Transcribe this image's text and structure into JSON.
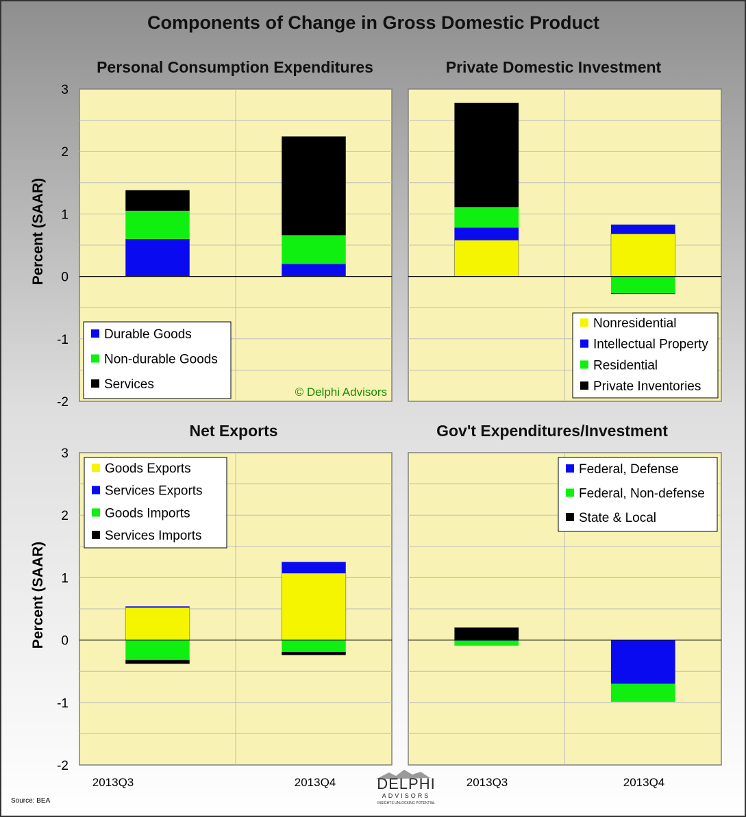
{
  "title": "Components of Change in Gross Domestic Product",
  "ylabel": "Percent (SAAR)",
  "yticks": [
    "3",
    "2",
    "1",
    "0",
    "-1",
    "-2"
  ],
  "categories": [
    "2013Q3",
    "2013Q4"
  ],
  "source": "Source: BEA",
  "watermark": "© Delphi Advisors",
  "logo": {
    "main": "DELPHI",
    "sub": "ADVISORS",
    "tagline": "INSIGHTS UNLOCKING POTENTIAL"
  },
  "colors": {
    "plot_bg": "#f8f3b4",
    "yellow": "#f5f500",
    "blue": "#0a0af0",
    "green": "#10f010",
    "black": "#000000",
    "watermark": "#1a8a00"
  },
  "chart_data": [
    {
      "id": "pce",
      "type": "bar",
      "stacked": true,
      "title": "Personal Consumption Expenditures",
      "categories": [
        "2013Q3",
        "2013Q4"
      ],
      "ylim": [
        -2,
        3
      ],
      "ylabel": "Percent (SAAR)",
      "legend_position": "bottom-left",
      "series": [
        {
          "name": "Durable Goods",
          "color": "blue",
          "values": [
            0.6,
            0.2
          ]
        },
        {
          "name": "Non-durable Goods",
          "color": "green",
          "values": [
            0.45,
            0.46
          ]
        },
        {
          "name": "Services",
          "color": "black",
          "values": [
            0.33,
            1.58
          ]
        }
      ]
    },
    {
      "id": "pdi",
      "type": "bar",
      "stacked": true,
      "title": "Private Domestic Investment",
      "categories": [
        "2013Q3",
        "2013Q4"
      ],
      "ylim": [
        -2,
        3
      ],
      "legend_position": "bottom-right",
      "series": [
        {
          "name": "Nonresidential",
          "color": "yellow",
          "values": [
            0.58,
            0.68
          ]
        },
        {
          "name": "Intellectual Property",
          "color": "blue",
          "values": [
            0.2,
            0.15
          ]
        },
        {
          "name": "Residential",
          "color": "green",
          "values": [
            0.33,
            -0.27
          ]
        },
        {
          "name": "Private Inventories",
          "color": "black",
          "values": [
            1.67,
            -0.01
          ]
        }
      ]
    },
    {
      "id": "nx",
      "type": "bar",
      "stacked": true,
      "title": "Net Exports",
      "categories": [
        "2013Q3",
        "2013Q4"
      ],
      "ylim": [
        -2,
        3
      ],
      "ylabel": "Percent (SAAR)",
      "legend_position": "top-left",
      "series": [
        {
          "name": "Goods Exports",
          "color": "yellow",
          "values": [
            0.52,
            1.07
          ]
        },
        {
          "name": "Services Exports",
          "color": "blue",
          "values": [
            0.02,
            0.18
          ]
        },
        {
          "name": "Goods Imports",
          "color": "green",
          "values": [
            -0.32,
            -0.19
          ]
        },
        {
          "name": "Services Imports",
          "color": "black",
          "values": [
            -0.06,
            -0.05
          ]
        }
      ]
    },
    {
      "id": "gov",
      "type": "bar",
      "stacked": true,
      "title": "Gov't Expenditures/Investment",
      "categories": [
        "2013Q3",
        "2013Q4"
      ],
      "ylim": [
        -2,
        3
      ],
      "legend_position": "top-right",
      "series": [
        {
          "name": "Federal, Defense",
          "color": "blue",
          "values": [
            -0.01,
            -0.7
          ]
        },
        {
          "name": "Federal, Non-defense",
          "color": "green",
          "values": [
            -0.08,
            -0.29
          ]
        },
        {
          "name": "State & Local",
          "color": "black",
          "values": [
            0.2,
            0.0
          ]
        }
      ]
    }
  ]
}
